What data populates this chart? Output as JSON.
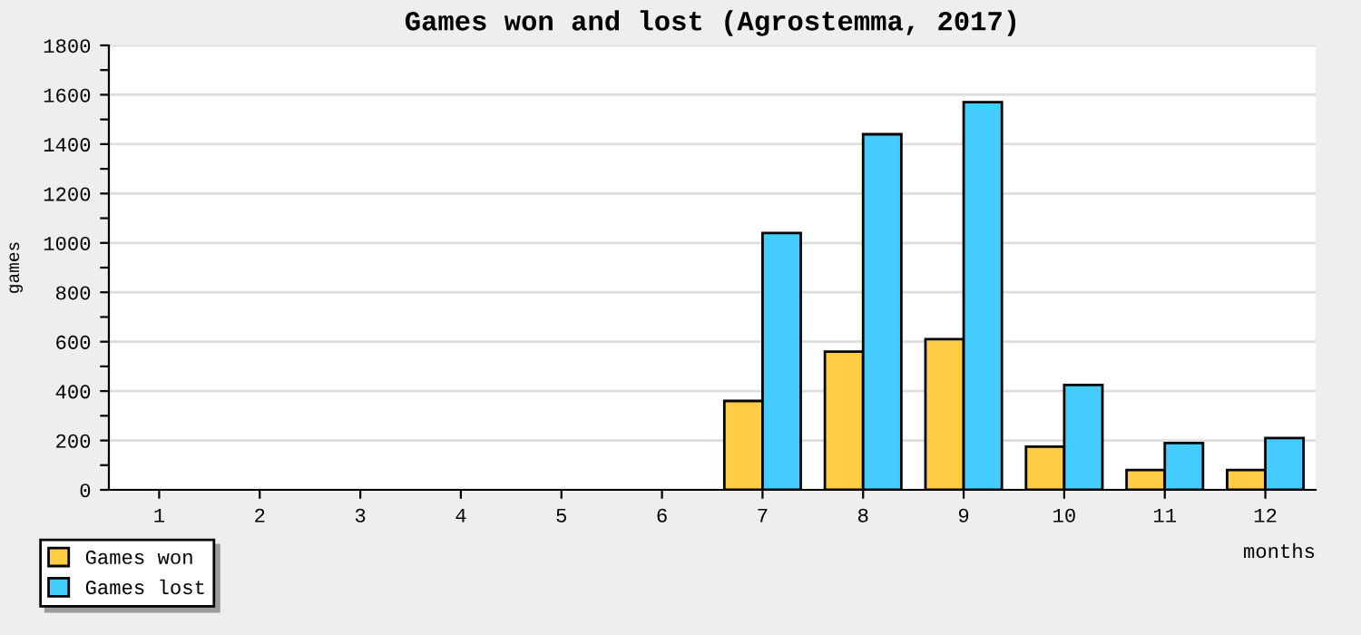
{
  "chart_data": {
    "type": "bar",
    "title": "Games won and lost (Agrostemma, 2017)",
    "xlabel": "months",
    "ylabel": "games",
    "categories": [
      "1",
      "2",
      "3",
      "4",
      "5",
      "6",
      "7",
      "8",
      "9",
      "10",
      "11",
      "12"
    ],
    "series": [
      {
        "name": "Games won",
        "color": "#ffcc44",
        "values": [
          null,
          null,
          null,
          null,
          null,
          null,
          360,
          560,
          610,
          175,
          80,
          80
        ]
      },
      {
        "name": "Games lost",
        "color": "#44ccff",
        "values": [
          null,
          null,
          null,
          null,
          null,
          null,
          1040,
          1440,
          1570,
          425,
          190,
          210
        ]
      }
    ],
    "ylim": [
      0,
      1800
    ],
    "yticks": [
      0,
      {
        "value": 100,
        "label": null
      },
      200,
      {
        "value": 300,
        "label": null
      },
      400,
      {
        "value": 500,
        "label": null
      },
      600,
      {
        "value": 700,
        "label": null
      },
      800,
      {
        "value": 900,
        "label": null
      },
      1000,
      {
        "value": 1100,
        "label": null
      },
      1200,
      {
        "value": 1300,
        "label": null
      },
      1400,
      {
        "value": 1500,
        "label": null
      },
      1600,
      {
        "value": 1700,
        "label": null
      },
      1800
    ],
    "grid": "y",
    "legend": "bottom left"
  }
}
